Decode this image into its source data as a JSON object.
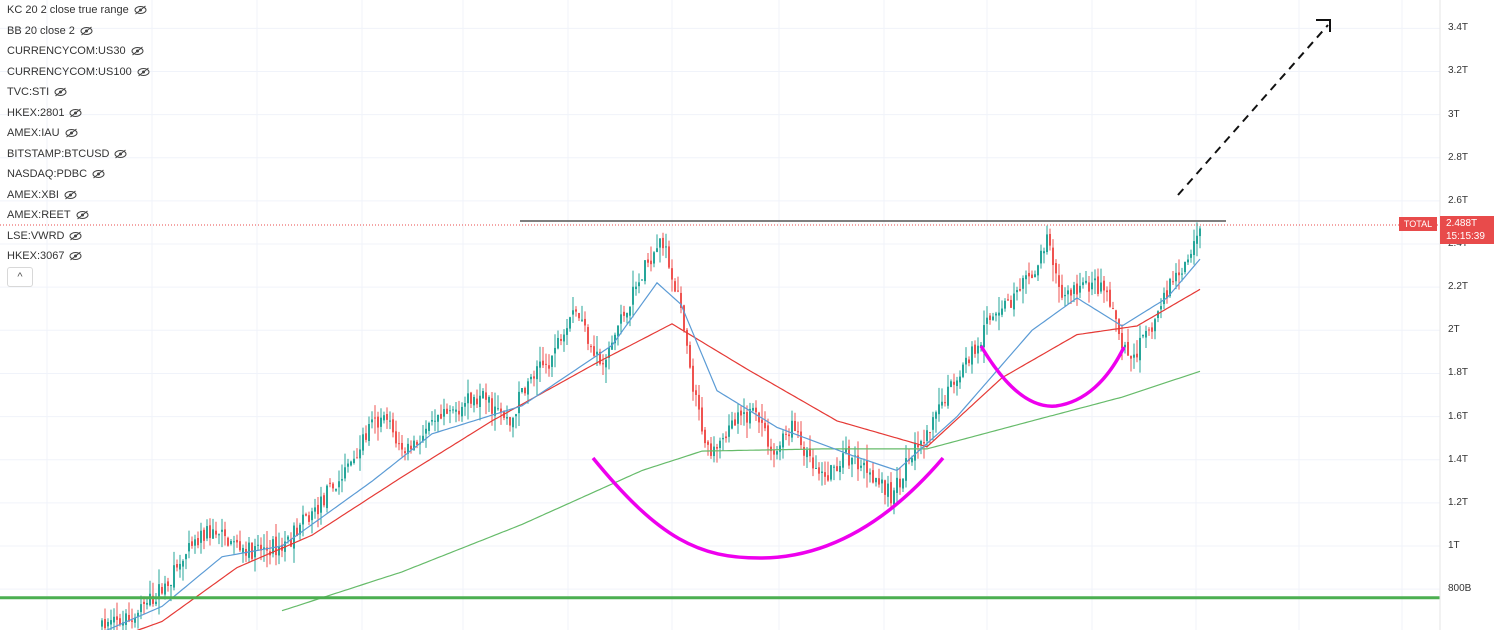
{
  "legend": {
    "items": [
      {
        "label": "KC 20 2 close true range"
      },
      {
        "label": "BB 20 close 2"
      },
      {
        "label": "CURRENCYCOM:US30"
      },
      {
        "label": "CURRENCYCOM:US100"
      },
      {
        "label": "TVC:STI"
      },
      {
        "label": "HKEX:2801"
      },
      {
        "label": "AMEX:IAU"
      },
      {
        "label": "BITSTAMP:BTCUSD"
      },
      {
        "label": "NASDAQ:PDBC"
      },
      {
        "label": "AMEX:XBI"
      },
      {
        "label": "AMEX:REET"
      },
      {
        "label": "LSE:VWRD"
      },
      {
        "label": "HKEX:3067"
      }
    ],
    "collapse_label": "^"
  },
  "price_tag": {
    "symbol": "TOTAL",
    "price": "2.488T",
    "countdown": "15:15:39"
  },
  "colors": {
    "up": "#26a69a",
    "down": "#ef5350",
    "ma_fast": "#5b9bd5",
    "ma_mid": "#e53935",
    "ma_slow": "#66bb6a",
    "support": "#4caf50",
    "resistance": "#555555",
    "pattern": "#ee00ee"
  },
  "chart_data": {
    "type": "candlestick",
    "y_axis": {
      "ticks": [
        "3.4T",
        "3.2T",
        "3T",
        "2.8T",
        "2.6T",
        "2.4T",
        "2.2T",
        "2T",
        "1.8T",
        "1.6T",
        "1.4T",
        "1.2T",
        "1T",
        "800B"
      ],
      "tick_values": [
        3.4,
        3.2,
        3.0,
        2.8,
        2.6,
        2.4,
        2.2,
        2.0,
        1.8,
        1.6,
        1.4,
        1.2,
        1.0,
        0.8
      ],
      "range": [
        0.62,
        3.5
      ],
      "unit": "T"
    },
    "close_trend": [
      [
        0,
        0.63
      ],
      [
        10,
        0.66
      ],
      [
        20,
        0.8
      ],
      [
        28,
        0.95
      ],
      [
        35,
        1.07
      ],
      [
        50,
        0.97
      ],
      [
        60,
        1.0
      ],
      [
        70,
        1.15
      ],
      [
        80,
        1.32
      ],
      [
        90,
        1.56
      ],
      [
        95,
        1.58
      ],
      [
        100,
        1.44
      ],
      [
        106,
        1.5
      ],
      [
        112,
        1.57
      ],
      [
        120,
        1.66
      ],
      [
        128,
        1.68
      ],
      [
        136,
        1.56
      ],
      [
        140,
        1.72
      ],
      [
        150,
        1.88
      ],
      [
        157,
        2.12
      ],
      [
        162,
        1.98
      ],
      [
        167,
        1.82
      ],
      [
        172,
        2.02
      ],
      [
        180,
        2.25
      ],
      [
        186,
        2.45
      ],
      [
        192,
        2.16
      ],
      [
        197,
        1.72
      ],
      [
        202,
        1.45
      ],
      [
        210,
        1.56
      ],
      [
        218,
        1.64
      ],
      [
        224,
        1.42
      ],
      [
        230,
        1.56
      ],
      [
        236,
        1.38
      ],
      [
        240,
        1.3
      ],
      [
        248,
        1.42
      ],
      [
        256,
        1.36
      ],
      [
        263,
        1.22
      ],
      [
        268,
        1.38
      ],
      [
        275,
        1.5
      ],
      [
        282,
        1.72
      ],
      [
        290,
        1.9
      ],
      [
        298,
        2.1
      ],
      [
        305,
        2.16
      ],
      [
        312,
        2.3
      ],
      [
        315,
        2.42
      ],
      [
        320,
        2.16
      ],
      [
        330,
        2.22
      ],
      [
        335,
        2.16
      ],
      [
        338,
        2.02
      ],
      [
        342,
        1.86
      ],
      [
        348,
        1.96
      ],
      [
        352,
        2.08
      ],
      [
        356,
        2.22
      ],
      [
        362,
        2.34
      ],
      [
        366,
        2.48
      ]
    ],
    "ma_fast": [
      [
        0,
        0.6
      ],
      [
        20,
        0.72
      ],
      [
        40,
        0.95
      ],
      [
        60,
        1.0
      ],
      [
        90,
        1.3
      ],
      [
        110,
        1.52
      ],
      [
        140,
        1.65
      ],
      [
        170,
        1.93
      ],
      [
        185,
        2.22
      ],
      [
        193,
        2.12
      ],
      [
        205,
        1.72
      ],
      [
        225,
        1.55
      ],
      [
        250,
        1.42
      ],
      [
        265,
        1.35
      ],
      [
        285,
        1.6
      ],
      [
        310,
        2.0
      ],
      [
        325,
        2.15
      ],
      [
        340,
        2.02
      ],
      [
        355,
        2.15
      ],
      [
        366,
        2.33
      ]
    ],
    "ma_mid": [
      [
        0,
        0.55
      ],
      [
        20,
        0.65
      ],
      [
        45,
        0.9
      ],
      [
        70,
        1.05
      ],
      [
        100,
        1.32
      ],
      [
        130,
        1.58
      ],
      [
        165,
        1.85
      ],
      [
        190,
        2.03
      ],
      [
        215,
        1.82
      ],
      [
        245,
        1.58
      ],
      [
        275,
        1.46
      ],
      [
        300,
        1.78
      ],
      [
        325,
        1.98
      ],
      [
        345,
        2.02
      ],
      [
        366,
        2.19
      ]
    ],
    "ma_slow": [
      [
        60,
        0.7
      ],
      [
        100,
        0.88
      ],
      [
        140,
        1.1
      ],
      [
        180,
        1.35
      ],
      [
        200,
        1.44
      ],
      [
        240,
        1.45
      ],
      [
        275,
        1.45
      ],
      [
        310,
        1.58
      ],
      [
        340,
        1.69
      ],
      [
        366,
        1.81
      ]
    ],
    "support_level": 0.76,
    "resistance_level": 2.48
  }
}
